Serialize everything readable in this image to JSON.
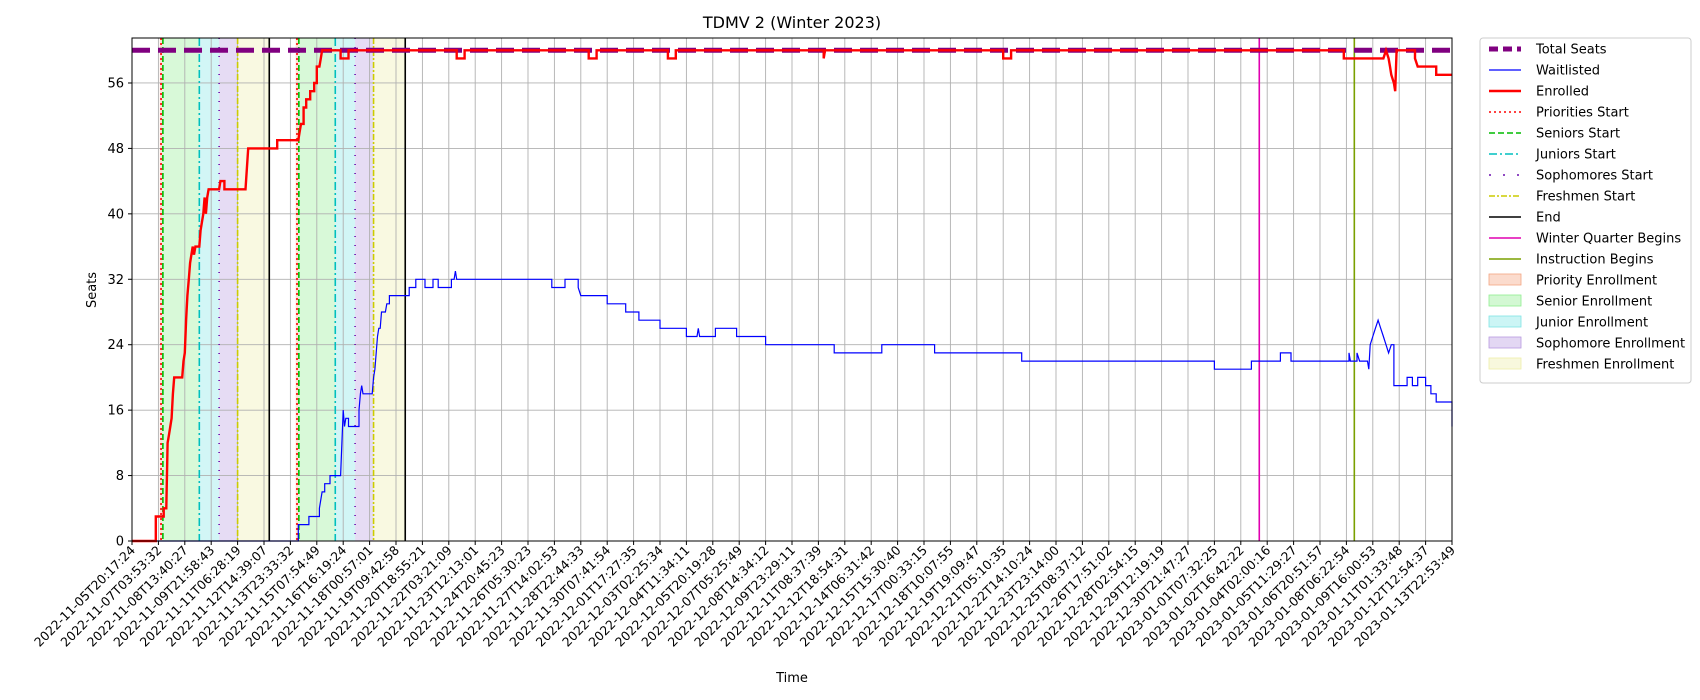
{
  "chart_data": {
    "type": "line",
    "title": "TDMV 2 (Winter 2023)",
    "xlabel": "Time",
    "ylabel": "Seats",
    "ylim": [
      0,
      60
    ],
    "yticks": [
      0,
      8,
      16,
      24,
      32,
      40,
      48,
      56
    ],
    "grid": true,
    "legend_position": "outside-right",
    "x_ticks": [
      "2022-11-05T20:17:24",
      "2022-11-07T03:53:32",
      "2022-11-08T13:40:27",
      "2022-11-09T21:58:43",
      "2022-11-11T06:28:19",
      "2022-11-12T14:39:07",
      "2022-11-13T23:33:32",
      "2022-11-15T07:54:49",
      "2022-11-16T16:19:24",
      "2022-11-18T00:57:01",
      "2022-11-19T09:42:58",
      "2022-11-20T18:55:21",
      "2022-11-22T03:21:09",
      "2022-11-23T12:13:01",
      "2022-11-24T20:45:23",
      "2022-11-26T05:30:23",
      "2022-11-27T14:02:53",
      "2022-11-28T22:44:33",
      "2022-11-30T07:41:54",
      "2022-12-01T17:27:35",
      "2022-12-03T02:25:34",
      "2022-12-04T11:34:11",
      "2022-12-05T20:19:28",
      "2022-12-07T05:25:49",
      "2022-12-08T14:34:12",
      "2022-12-09T23:29:11",
      "2022-12-11T08:37:39",
      "2022-12-12T18:54:31",
      "2022-12-14T06:31:42",
      "2022-12-15T15:30:40",
      "2022-12-17T00:33:15",
      "2022-12-18T10:07:55",
      "2022-12-19T19:09:47",
      "2022-12-21T05:10:35",
      "2022-12-22T14:10:24",
      "2022-12-23T23:14:00",
      "2022-12-25T08:37:12",
      "2022-12-26T17:51:02",
      "2022-12-28T02:54:15",
      "2022-12-29T12:19:19",
      "2022-12-30T21:47:27",
      "2023-01-01T07:32:25",
      "2023-01-02T16:42:22",
      "2023-01-04T02:00:16",
      "2023-01-05T11:29:27",
      "2023-01-06T20:51:57",
      "2023-01-08T06:22:54",
      "2023-01-09T16:00:53",
      "2023-01-11T01:33:48",
      "2023-01-12T12:54:37",
      "2023-01-13T22:53:49"
    ],
    "series": [
      {
        "name": "Total Seats",
        "color": "#800080",
        "style": "dashed-thick",
        "points": [
          [
            0,
            60
          ],
          [
            50,
            60
          ]
        ]
      },
      {
        "name": "Waitlisted",
        "color": "#0000ff",
        "style": "solid",
        "points": [
          [
            0,
            0
          ],
          [
            1.3,
            0
          ],
          [
            1.3,
            0
          ],
          [
            6.3,
            0
          ],
          [
            6.3,
            2
          ],
          [
            6.7,
            2
          ],
          [
            6.7,
            3
          ],
          [
            7.1,
            3
          ],
          [
            7.1,
            4
          ],
          [
            7.2,
            6
          ],
          [
            7.3,
            6
          ],
          [
            7.3,
            7
          ],
          [
            7.5,
            7
          ],
          [
            7.5,
            8
          ],
          [
            7.9,
            8
          ],
          [
            7.95,
            12
          ],
          [
            8.0,
            16
          ],
          [
            8.05,
            14
          ],
          [
            8.1,
            15
          ],
          [
            8.2,
            15
          ],
          [
            8.2,
            14
          ],
          [
            8.6,
            14
          ],
          [
            8.6,
            16
          ],
          [
            8.65,
            18
          ],
          [
            8.7,
            19
          ],
          [
            8.75,
            18
          ],
          [
            9.1,
            18
          ],
          [
            9.15,
            20
          ],
          [
            9.2,
            21
          ],
          [
            9.3,
            25
          ],
          [
            9.35,
            26
          ],
          [
            9.4,
            26
          ],
          [
            9.45,
            28
          ],
          [
            9.6,
            28
          ],
          [
            9.65,
            29
          ],
          [
            9.75,
            29
          ],
          [
            9.75,
            30
          ],
          [
            10.5,
            30
          ],
          [
            10.5,
            31
          ],
          [
            10.75,
            31
          ],
          [
            10.75,
            32
          ],
          [
            11.1,
            32
          ],
          [
            11.1,
            31
          ],
          [
            11.4,
            31
          ],
          [
            11.4,
            32
          ],
          [
            11.6,
            32
          ],
          [
            11.6,
            31
          ],
          [
            12.1,
            31
          ],
          [
            12.1,
            32
          ],
          [
            12.2,
            32
          ],
          [
            12.25,
            33
          ],
          [
            12.3,
            32
          ],
          [
            15.9,
            32
          ],
          [
            15.9,
            31
          ],
          [
            16.4,
            31
          ],
          [
            16.4,
            32
          ],
          [
            16.9,
            32
          ],
          [
            16.9,
            31
          ],
          [
            17.0,
            30
          ],
          [
            18.0,
            30
          ],
          [
            18.0,
            29
          ],
          [
            18.7,
            29
          ],
          [
            18.7,
            28
          ],
          [
            19.2,
            28
          ],
          [
            19.2,
            27
          ],
          [
            20.0,
            27
          ],
          [
            20.0,
            26
          ],
          [
            20.6,
            26
          ],
          [
            20.6,
            26
          ],
          [
            21.0,
            26
          ],
          [
            21.0,
            25
          ],
          [
            21.4,
            25
          ],
          [
            21.45,
            26
          ],
          [
            21.5,
            25
          ],
          [
            22.1,
            25
          ],
          [
            22.1,
            26
          ],
          [
            22.9,
            26
          ],
          [
            22.9,
            25
          ],
          [
            24.0,
            25
          ],
          [
            24.0,
            24
          ],
          [
            26.6,
            24
          ],
          [
            26.6,
            23
          ],
          [
            28.4,
            23
          ],
          [
            28.4,
            24
          ],
          [
            30.4,
            24
          ],
          [
            30.4,
            23
          ],
          [
            33.7,
            23
          ],
          [
            33.7,
            22
          ],
          [
            41.0,
            22
          ],
          [
            41.0,
            21
          ],
          [
            42.4,
            21
          ],
          [
            42.4,
            22
          ],
          [
            43.5,
            22
          ],
          [
            43.5,
            23
          ],
          [
            43.9,
            23
          ],
          [
            43.9,
            22
          ],
          [
            46.1,
            22
          ],
          [
            46.1,
            23
          ],
          [
            46.15,
            22
          ],
          [
            46.4,
            22
          ],
          [
            46.4,
            23
          ],
          [
            46.5,
            22
          ],
          [
            46.8,
            22
          ],
          [
            46.85,
            21
          ],
          [
            46.9,
            24
          ],
          [
            47.0,
            25
          ],
          [
            47.1,
            26
          ],
          [
            47.2,
            27
          ],
          [
            47.3,
            26
          ],
          [
            47.4,
            25
          ],
          [
            47.5,
            24
          ],
          [
            47.6,
            23
          ],
          [
            47.7,
            24
          ],
          [
            47.8,
            24
          ],
          [
            47.8,
            19
          ],
          [
            48.3,
            19
          ],
          [
            48.3,
            20
          ],
          [
            48.5,
            20
          ],
          [
            48.5,
            19
          ],
          [
            48.7,
            19
          ],
          [
            48.7,
            20
          ],
          [
            49.0,
            20
          ],
          [
            49.0,
            19
          ],
          [
            49.2,
            19
          ],
          [
            49.2,
            18
          ],
          [
            49.4,
            18
          ],
          [
            49.4,
            17
          ],
          [
            50.0,
            17
          ],
          [
            50.0,
            14
          ]
        ]
      },
      {
        "name": "Enrolled",
        "color": "#ff0000",
        "style": "solid-thick",
        "points": [
          [
            0,
            0
          ],
          [
            0.9,
            0
          ],
          [
            0.9,
            3
          ],
          [
            1.2,
            3
          ],
          [
            1.2,
            4
          ],
          [
            1.3,
            4
          ],
          [
            1.35,
            12
          ],
          [
            1.4,
            13
          ],
          [
            1.45,
            14
          ],
          [
            1.5,
            15
          ],
          [
            1.55,
            18
          ],
          [
            1.6,
            20
          ],
          [
            1.8,
            20
          ],
          [
            1.9,
            20
          ],
          [
            1.95,
            22
          ],
          [
            2.0,
            23
          ],
          [
            2.05,
            27
          ],
          [
            2.1,
            30
          ],
          [
            2.15,
            32
          ],
          [
            2.2,
            34
          ],
          [
            2.25,
            35
          ],
          [
            2.3,
            36
          ],
          [
            2.35,
            35
          ],
          [
            2.4,
            36
          ],
          [
            2.55,
            36
          ],
          [
            2.6,
            38
          ],
          [
            2.7,
            40
          ],
          [
            2.75,
            42
          ],
          [
            2.8,
            40
          ],
          [
            2.85,
            42
          ],
          [
            2.9,
            43
          ],
          [
            3.3,
            43
          ],
          [
            3.35,
            44
          ],
          [
            3.5,
            44
          ],
          [
            3.5,
            43
          ],
          [
            4.3,
            43
          ],
          [
            4.4,
            48
          ],
          [
            5.5,
            48
          ],
          [
            5.5,
            49
          ],
          [
            6.3,
            49
          ],
          [
            6.35,
            50
          ],
          [
            6.4,
            51
          ],
          [
            6.5,
            51
          ],
          [
            6.5,
            53
          ],
          [
            6.6,
            53
          ],
          [
            6.6,
            54
          ],
          [
            6.75,
            54
          ],
          [
            6.75,
            55
          ],
          [
            6.9,
            55
          ],
          [
            6.9,
            56
          ],
          [
            7.0,
            56
          ],
          [
            7.0,
            58
          ],
          [
            7.1,
            58
          ],
          [
            7.15,
            59
          ],
          [
            7.2,
            60
          ],
          [
            7.9,
            60
          ],
          [
            7.9,
            59
          ],
          [
            8.2,
            59
          ],
          [
            8.2,
            60
          ],
          [
            12.3,
            60
          ],
          [
            12.3,
            59
          ],
          [
            12.6,
            59
          ],
          [
            12.6,
            60
          ],
          [
            17.3,
            60
          ],
          [
            17.3,
            59
          ],
          [
            17.6,
            59
          ],
          [
            17.6,
            60
          ],
          [
            20.3,
            60
          ],
          [
            20.3,
            59
          ],
          [
            20.6,
            59
          ],
          [
            20.6,
            60
          ],
          [
            26.2,
            60
          ],
          [
            26.2,
            59
          ],
          [
            26.25,
            60
          ],
          [
            33.0,
            60
          ],
          [
            33.0,
            59
          ],
          [
            33.3,
            59
          ],
          [
            33.3,
            60
          ],
          [
            45.9,
            60
          ],
          [
            45.9,
            59
          ],
          [
            47.4,
            59
          ],
          [
            47.5,
            60
          ],
          [
            47.6,
            59
          ],
          [
            47.65,
            58
          ],
          [
            47.7,
            57
          ],
          [
            47.8,
            56
          ],
          [
            47.85,
            55
          ],
          [
            47.9,
            60
          ],
          [
            48.6,
            60
          ],
          [
            48.6,
            59
          ],
          [
            48.7,
            58
          ],
          [
            49.4,
            58
          ],
          [
            49.4,
            57
          ],
          [
            50.0,
            57
          ]
        ]
      }
    ],
    "shaded_regions": [
      {
        "name": "Priority Enrollment",
        "color": "#f4a582",
        "ranges": [
          [
            1.05,
            1.15
          ],
          [
            6.2,
            6.3
          ]
        ]
      },
      {
        "name": "Senior Enrollment",
        "color": "#90ee90",
        "ranges": [
          [
            1.15,
            2.55
          ],
          [
            6.3,
            7.7
          ]
        ]
      },
      {
        "name": "Junior Enrollment",
        "color": "#7fe5e5",
        "ranges": [
          [
            2.55,
            3.3
          ],
          [
            7.7,
            8.45
          ]
        ]
      },
      {
        "name": "Sophomore Enrollment",
        "color": "#b89ae0",
        "ranges": [
          [
            3.3,
            4.0
          ],
          [
            8.45,
            9.15
          ]
        ]
      },
      {
        "name": "Freshmen Enrollment",
        "color": "#eeeeaa",
        "ranges": [
          [
            4.0,
            5.2
          ],
          [
            9.15,
            10.35
          ]
        ]
      }
    ],
    "vertical_markers": [
      {
        "name": "Priorities Start",
        "color": "#ff0000",
        "dash": "2,3",
        "x": [
          1.1,
          6.25
        ]
      },
      {
        "name": "Seniors Start",
        "color": "#00bb00",
        "dash": "6,3",
        "x": [
          1.17,
          6.32
        ]
      },
      {
        "name": "Juniors Start",
        "color": "#00bfbf",
        "dash": "8,3,2,3",
        "x": [
          2.55,
          7.7
        ]
      },
      {
        "name": "Sophomores Start",
        "color": "#6a0dad",
        "dash": "1,8",
        "x": [
          3.3,
          8.45
        ]
      },
      {
        "name": "Freshmen Start",
        "color": "#cccc00",
        "dash": "6,2,2,2",
        "x": [
          4.0,
          9.15
        ]
      },
      {
        "name": "End",
        "color": "#000000",
        "dash": "",
        "x": [
          5.2,
          10.35
        ]
      },
      {
        "name": "Winter Quarter Begins",
        "color": "#e000b0",
        "dash": "",
        "x": [
          42.7
        ]
      },
      {
        "name": "Instruction Begins",
        "color": "#7aa000",
        "dash": "",
        "x": [
          46.3
        ]
      }
    ],
    "legend": [
      {
        "label": "Total Seats",
        "kind": "line",
        "color": "#800080",
        "width": 5,
        "dash": "9,5"
      },
      {
        "label": "Waitlisted",
        "kind": "line",
        "color": "#0000ff",
        "width": 1.3,
        "dash": ""
      },
      {
        "label": "Enrolled",
        "kind": "line",
        "color": "#ff0000",
        "width": 2.4,
        "dash": ""
      },
      {
        "label": "Priorities Start",
        "kind": "line",
        "color": "#ff0000",
        "width": 1.4,
        "dash": "2,3"
      },
      {
        "label": "Seniors Start",
        "kind": "line",
        "color": "#00bb00",
        "width": 1.4,
        "dash": "6,3"
      },
      {
        "label": "Juniors Start",
        "kind": "line",
        "color": "#00bfbf",
        "width": 1.4,
        "dash": "8,3,2,3"
      },
      {
        "label": "Sophomores Start",
        "kind": "line",
        "color": "#6a0dad",
        "width": 1.6,
        "dash": "2,12"
      },
      {
        "label": "Freshmen Start",
        "kind": "line",
        "color": "#cccc00",
        "width": 1.4,
        "dash": "6,2,2,2"
      },
      {
        "label": "End",
        "kind": "line",
        "color": "#000000",
        "width": 1.6,
        "dash": ""
      },
      {
        "label": "Winter Quarter Begins",
        "kind": "line",
        "color": "#e000b0",
        "width": 1.6,
        "dash": ""
      },
      {
        "label": "Instruction Begins",
        "kind": "line",
        "color": "#7aa000",
        "width": 1.6,
        "dash": ""
      },
      {
        "label": "Priority Enrollment",
        "kind": "patch",
        "color": "#f4a582"
      },
      {
        "label": "Senior Enrollment",
        "kind": "patch",
        "color": "#90ee90"
      },
      {
        "label": "Junior Enrollment",
        "kind": "patch",
        "color": "#7fe5e5"
      },
      {
        "label": "Sophomore Enrollment",
        "kind": "patch",
        "color": "#b89ae0"
      },
      {
        "label": "Freshmen Enrollment",
        "kind": "patch",
        "color": "#eeeeaa"
      }
    ]
  }
}
